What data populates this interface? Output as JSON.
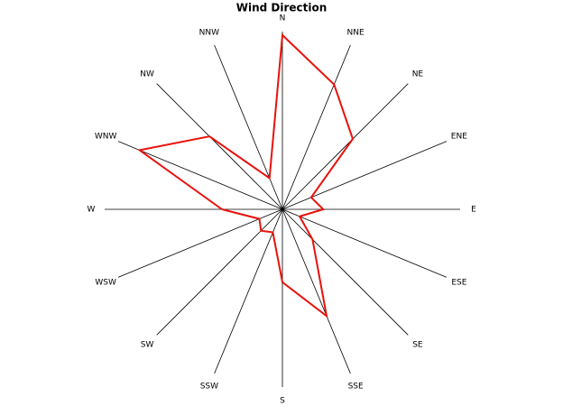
{
  "chart_data": {
    "type": "radar",
    "title": "Wind Direction",
    "categories": [
      "N",
      "NNE",
      "NE",
      "ENE",
      "E",
      "ESE",
      "SE",
      "SSE",
      "S",
      "SSW",
      "SW",
      "WSW",
      "W",
      "WNW",
      "NW",
      "NNW"
    ],
    "series": [
      {
        "color": "#e8120c",
        "values": [
          9.8,
          7.6,
          5.6,
          1.75,
          2.3,
          1.05,
          2.4,
          6.5,
          4.1,
          1.4,
          1.7,
          1.4,
          3.4,
          8.7,
          5.8,
          1.9
        ]
      }
    ],
    "ylim": [
      0,
      10
    ]
  }
}
